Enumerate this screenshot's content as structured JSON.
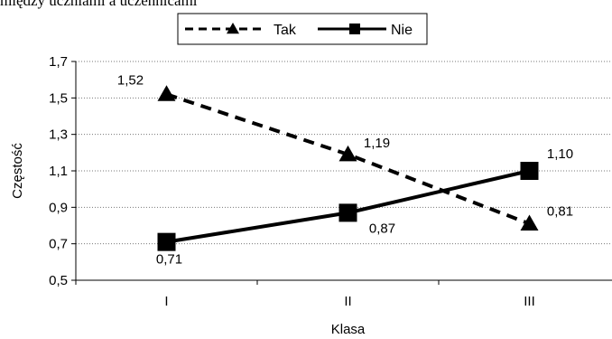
{
  "top_text": "między uczniami a uczennicami",
  "chart_data": {
    "type": "line",
    "categories": [
      "I",
      "II",
      "III"
    ],
    "series": [
      {
        "name": "Tak",
        "values": [
          1.52,
          1.19,
          0.81
        ],
        "labels": [
          "1,52",
          "1,19",
          "0,81"
        ],
        "style": "dashed",
        "marker": "triangle",
        "color": "#000000"
      },
      {
        "name": "Nie",
        "values": [
          0.71,
          0.87,
          1.1
        ],
        "labels": [
          "0,71",
          "0,87",
          "1,10"
        ],
        "style": "solid",
        "marker": "square",
        "color": "#000000"
      }
    ],
    "xlabel": "Klasa",
    "ylabel": "Częstość",
    "ylim": [
      0.5,
      1.7
    ],
    "yticks": [
      0.5,
      0.7,
      0.9,
      1.1,
      1.3,
      1.5,
      1.7
    ],
    "ytick_labels": [
      "0,5",
      "0,7",
      "0,9",
      "1,1",
      "1,3",
      "1,5",
      "1,7"
    ],
    "grid": "horizontal-dotted",
    "legend_position": "top"
  }
}
